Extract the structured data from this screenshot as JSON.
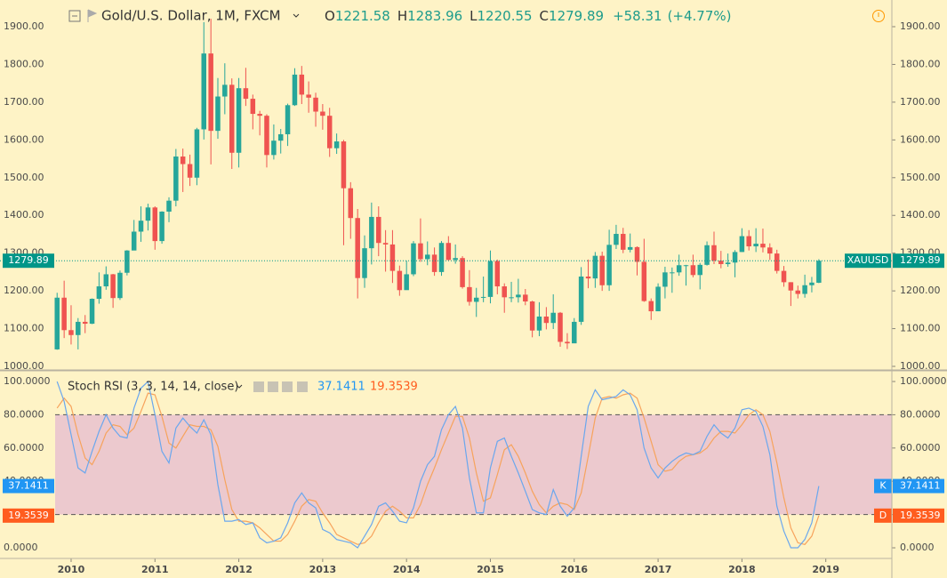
{
  "chart_data": [
    {
      "type": "candlestick",
      "title": "Gold/U.S. Dollar, 1M, FXCM",
      "symbol": "XAUUSD",
      "ohlc_labels": [
        "O",
        "H",
        "L",
        "C"
      ],
      "change": "+58.31",
      "change_percent": "(+4.77%)",
      "up_color": "#26a69a",
      "down_color": "#ef5350",
      "last_color": "#009688",
      "xlim": [
        2009.152,
        2019.788
      ],
      "ylim": [
        990.6,
        1970.7
      ],
      "yticks": [
        {
          "value": 1000,
          "label": "1000.00"
        },
        {
          "value": 1100,
          "label": "1100.00"
        },
        {
          "value": 1200,
          "label": "1200.00"
        },
        {
          "value": 1300,
          "label": "1300.00"
        },
        {
          "value": 1400,
          "label": "1400.00"
        },
        {
          "value": 1500,
          "label": "1500.00"
        },
        {
          "value": 1600,
          "label": "1600.00"
        },
        {
          "value": 1700,
          "label": "1700.00"
        },
        {
          "value": 1800,
          "label": "1800.00"
        },
        {
          "value": 1900,
          "label": "1900.00"
        }
      ],
      "x": [
        2009.833,
        2009.917,
        2010.0,
        2010.083,
        2010.167,
        2010.25,
        2010.333,
        2010.417,
        2010.5,
        2010.583,
        2010.667,
        2010.75,
        2010.833,
        2010.917,
        2011.0,
        2011.083,
        2011.167,
        2011.25,
        2011.333,
        2011.417,
        2011.5,
        2011.583,
        2011.667,
        2011.75,
        2011.833,
        2011.917,
        2012.0,
        2012.083,
        2012.167,
        2012.25,
        2012.333,
        2012.417,
        2012.5,
        2012.583,
        2012.667,
        2012.75,
        2012.833,
        2012.917,
        2013.0,
        2013.083,
        2013.167,
        2013.25,
        2013.333,
        2013.417,
        2013.5,
        2013.583,
        2013.667,
        2013.75,
        2013.833,
        2013.917,
        2014.0,
        2014.083,
        2014.167,
        2014.25,
        2014.333,
        2014.417,
        2014.5,
        2014.583,
        2014.667,
        2014.75,
        2014.833,
        2014.917,
        2015.0,
        2015.083,
        2015.167,
        2015.25,
        2015.333,
        2015.417,
        2015.5,
        2015.583,
        2015.667,
        2015.75,
        2015.833,
        2015.917,
        2016.0,
        2016.083,
        2016.167,
        2016.25,
        2016.333,
        2016.417,
        2016.5,
        2016.583,
        2016.667,
        2016.75,
        2016.833,
        2016.917,
        2017.0,
        2017.083,
        2017.167,
        2017.25,
        2017.333,
        2017.417,
        2017.5,
        2017.583,
        2017.667,
        2017.75,
        2017.833,
        2017.917,
        2018.0,
        2018.083,
        2018.167,
        2018.25,
        2018.333,
        2018.417,
        2018.5,
        2018.583,
        2018.667,
        2018.75,
        2018.833,
        2018.917
      ],
      "open": [
        1045,
        1182,
        1096,
        1083,
        1118,
        1113,
        1179,
        1212,
        1244,
        1181,
        1248,
        1307,
        1357,
        1386,
        1421,
        1332,
        1410,
        1439,
        1556,
        1536,
        1500,
        1628,
        1829,
        1624,
        1715,
        1746,
        1566,
        1737,
        1709,
        1669,
        1664,
        1560,
        1598,
        1615,
        1692,
        1773,
        1720,
        1712,
        1675,
        1664,
        1578,
        1596,
        1472,
        1393,
        1234,
        1313,
        1396,
        1327,
        1323,
        1253,
        1202,
        1244,
        1326,
        1284,
        1296,
        1250,
        1327,
        1282,
        1287,
        1210,
        1171,
        1182,
        1184,
        1279,
        1212,
        1183,
        1183,
        1190,
        1172,
        1095,
        1132,
        1115,
        1142,
        1065,
        1061,
        1118,
        1238,
        1233,
        1293,
        1215,
        1322,
        1351,
        1309,
        1316,
        1277,
        1173,
        1146,
        1211,
        1249,
        1249,
        1268,
        1268,
        1242,
        1269,
        1321,
        1280,
        1271,
        1275,
        1303,
        1345,
        1318,
        1325,
        1315,
        1299,
        1253,
        1223,
        1201,
        1192,
        1215,
        1221.58
      ],
      "high": [
        1195,
        1227,
        1162,
        1128,
        1136,
        1180,
        1249,
        1265,
        1245,
        1254,
        1308,
        1388,
        1424,
        1431,
        1424,
        1411,
        1448,
        1576,
        1577,
        1561,
        1632,
        1912,
        1921,
        1764,
        1803,
        1763,
        1764,
        1791,
        1720,
        1677,
        1668,
        1641,
        1629,
        1696,
        1790,
        1796,
        1755,
        1725,
        1695,
        1685,
        1617,
        1600,
        1488,
        1417,
        1347,
        1434,
        1424,
        1361,
        1361,
        1267,
        1280,
        1332,
        1392,
        1331,
        1315,
        1332,
        1345,
        1323,
        1292,
        1255,
        1208,
        1238,
        1307,
        1283,
        1220,
        1224,
        1232,
        1205,
        1174,
        1170,
        1157,
        1191,
        1144,
        1088,
        1128,
        1263,
        1283,
        1303,
        1304,
        1362,
        1375,
        1367,
        1352,
        1318,
        1338,
        1180,
        1220,
        1264,
        1262,
        1296,
        1269,
        1296,
        1274,
        1331,
        1357,
        1306,
        1299,
        1308,
        1366,
        1361,
        1366,
        1365,
        1326,
        1309,
        1266,
        1223,
        1214,
        1243,
        1237,
        1283.96
      ],
      "low": [
        1044,
        1075,
        1058,
        1045,
        1088,
        1112,
        1166,
        1203,
        1155,
        1176,
        1241,
        1308,
        1330,
        1360,
        1309,
        1325,
        1382,
        1424,
        1462,
        1478,
        1480,
        1601,
        1535,
        1603,
        1668,
        1523,
        1527,
        1690,
        1628,
        1612,
        1527,
        1548,
        1564,
        1584,
        1690,
        1695,
        1672,
        1635,
        1627,
        1555,
        1563,
        1321,
        1338,
        1180,
        1208,
        1270,
        1292,
        1251,
        1221,
        1187,
        1203,
        1239,
        1277,
        1268,
        1240,
        1240,
        1281,
        1272,
        1206,
        1161,
        1131,
        1170,
        1167,
        1191,
        1142,
        1170,
        1169,
        1162,
        1077,
        1080,
        1098,
        1099,
        1052,
        1046,
        1062,
        1110,
        1207,
        1208,
        1200,
        1200,
        1311,
        1300,
        1302,
        1241,
        1171,
        1123,
        1147,
        1180,
        1195,
        1240,
        1214,
        1236,
        1204,
        1267,
        1271,
        1260,
        1264,
        1236,
        1303,
        1307,
        1303,
        1302,
        1282,
        1246,
        1211,
        1160,
        1180,
        1182,
        1196,
        1220.55
      ],
      "close": [
        1182,
        1096,
        1083,
        1118,
        1113,
        1179,
        1212,
        1244,
        1181,
        1248,
        1307,
        1357,
        1386,
        1421,
        1332,
        1410,
        1439,
        1556,
        1536,
        1500,
        1628,
        1829,
        1624,
        1715,
        1746,
        1566,
        1737,
        1709,
        1669,
        1664,
        1560,
        1598,
        1615,
        1692,
        1773,
        1720,
        1712,
        1675,
        1664,
        1578,
        1596,
        1472,
        1393,
        1234,
        1313,
        1396,
        1327,
        1323,
        1253,
        1202,
        1244,
        1326,
        1284,
        1296,
        1250,
        1327,
        1282,
        1287,
        1210,
        1171,
        1182,
        1184,
        1279,
        1212,
        1183,
        1183,
        1190,
        1172,
        1095,
        1132,
        1115,
        1142,
        1065,
        1061,
        1118,
        1238,
        1233,
        1293,
        1215,
        1322,
        1351,
        1309,
        1316,
        1277,
        1173,
        1146,
        1211,
        1249,
        1249,
        1268,
        1268,
        1242,
        1269,
        1321,
        1280,
        1271,
        1275,
        1303,
        1345,
        1318,
        1325,
        1315,
        1299,
        1253,
        1223,
        1201,
        1192,
        1215,
        1222,
        1279.89
      ]
    },
    {
      "type": "line",
      "title": "Stoch RSI (3, 3, 14, 14, close)",
      "ylim": [
        -6.4,
        105.9
      ],
      "yticks": [
        {
          "value": 0,
          "label": "0.0000"
        },
        {
          "value": 20,
          "label": "20.0000"
        },
        {
          "value": 40,
          "label": "40.0000"
        },
        {
          "value": 60,
          "label": "60.0000"
        },
        {
          "value": 80,
          "label": "80.0000"
        },
        {
          "value": 100,
          "label": "100.0000"
        }
      ],
      "xticks": [
        2010,
        2011,
        2012,
        2013,
        2014,
        2015,
        2016,
        2017,
        2018,
        2019
      ],
      "bands": [
        20,
        80
      ],
      "band_color": "#e9c1cf",
      "series": [
        {
          "name": "K",
          "color": "#2196f3",
          "line_color": "#6aa7ee",
          "values": [
            100,
            88,
            68,
            48,
            45,
            58,
            70,
            80,
            72,
            67,
            66,
            84,
            96,
            100,
            80,
            58,
            51,
            72,
            78,
            73,
            69,
            77,
            68,
            38,
            16,
            16,
            17,
            14,
            15,
            6,
            3,
            4,
            6,
            15,
            27,
            33,
            27,
            24,
            11,
            9,
            5,
            4,
            3,
            0,
            7,
            14,
            25,
            27,
            22,
            16,
            15,
            24,
            40,
            50,
            55,
            71,
            80,
            85,
            72,
            42,
            21,
            21,
            48,
            64,
            66,
            55,
            45,
            34,
            23,
            21,
            20,
            35,
            25,
            19,
            24,
            55,
            85,
            95,
            89,
            90,
            91,
            95,
            92,
            83,
            60,
            48,
            42,
            48,
            52,
            55,
            57,
            56,
            58,
            67,
            74,
            69,
            66,
            72,
            83,
            84,
            82,
            73,
            56,
            25,
            10,
            0,
            0,
            5,
            15,
            37.1411
          ]
        },
        {
          "name": "D",
          "color": "#ff5d1f",
          "line_color": "#f7a35c",
          "values": [
            84,
            90,
            85,
            68,
            54,
            50,
            58,
            69,
            74,
            73,
            68,
            72,
            82,
            93,
            92,
            79,
            63,
            60,
            67,
            74,
            73,
            73,
            71,
            61,
            41,
            23,
            16,
            16,
            15,
            12,
            8,
            4,
            4,
            8,
            16,
            25,
            29,
            28,
            21,
            15,
            8,
            6,
            4,
            2,
            3,
            7,
            15,
            22,
            25,
            22,
            18,
            18,
            26,
            38,
            48,
            59,
            69,
            79,
            79,
            66,
            45,
            28,
            30,
            44,
            59,
            62,
            55,
            45,
            34,
            26,
            21,
            25,
            27,
            26,
            23,
            33,
            55,
            78,
            90,
            91,
            90,
            92,
            93,
            90,
            78,
            64,
            50,
            46,
            47,
            52,
            55,
            56,
            57,
            60,
            66,
            70,
            70,
            69,
            74,
            80,
            83,
            80,
            70,
            51,
            30,
            12,
            3,
            2,
            7,
            19.3539
          ]
        }
      ]
    }
  ]
}
